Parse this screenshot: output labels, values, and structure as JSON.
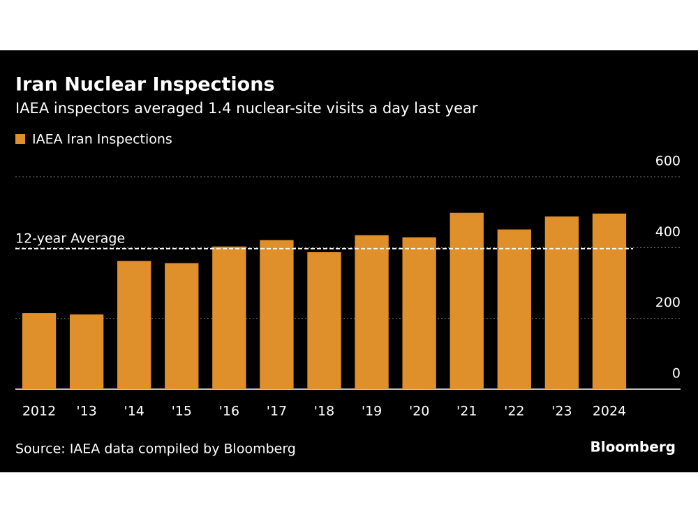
{
  "chart_data": {
    "type": "bar",
    "title": "Iran Nuclear Inspections",
    "subtitle": "IAEA inspectors averaged 1.4 nuclear-site visits a day last year",
    "categories": [
      "2012",
      "'13",
      "'14",
      "'15",
      "'16",
      "'17",
      "'18",
      "'19",
      "'20",
      "'21",
      "'22",
      "'23",
      "2024"
    ],
    "series": [
      {
        "name": "IAEA Iran Inspections",
        "color": "#e0902a",
        "values": [
          215,
          211,
          362,
          356,
          403,
          421,
          387,
          435,
          429,
          498,
          451,
          488,
          496
        ]
      }
    ],
    "average": {
      "label": "12-year Average",
      "value": 397
    },
    "ylim": [
      0,
      600
    ],
    "yticks": [
      0,
      200,
      400,
      600
    ],
    "grid": true,
    "source": "Source: IAEA data compiled by Bloomberg",
    "logo": "Bloomberg"
  }
}
